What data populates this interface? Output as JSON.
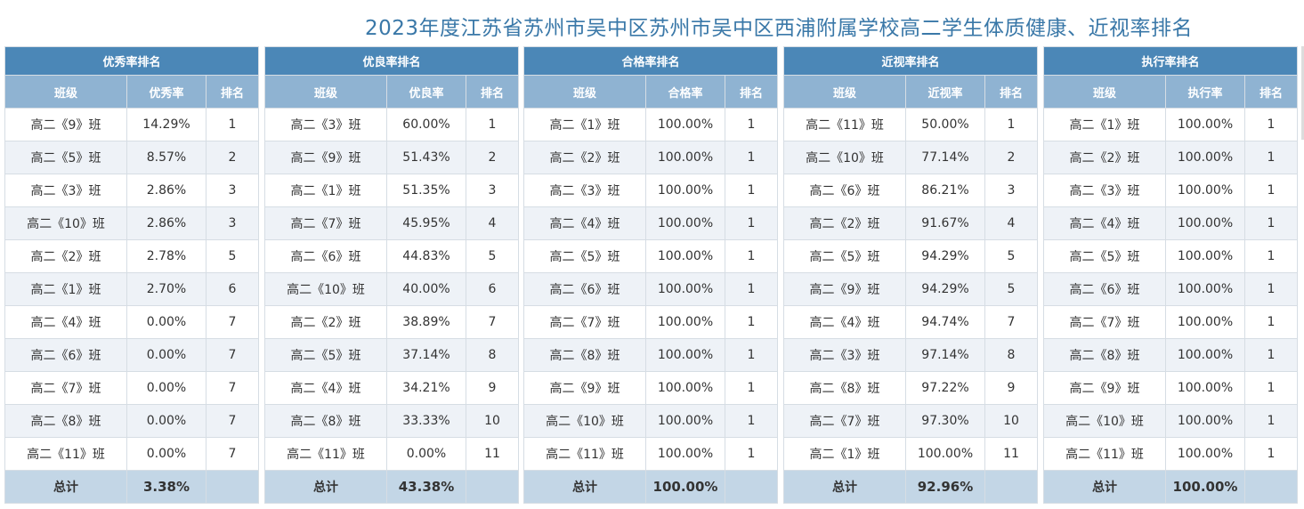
{
  "title": "2023年度江苏省苏州市吴中区苏州市吴中区西浦附属学校高二学生体质健康、近视率排名",
  "headers": {
    "class": "班级",
    "rank": "排名"
  },
  "total_label": "总计",
  "tables": [
    {
      "title": "优秀率排名",
      "rate_header": "优秀率",
      "rows": [
        {
          "cls": "高二《9》班",
          "rate": "14.29%",
          "rank": "1"
        },
        {
          "cls": "高二《5》班",
          "rate": "8.57%",
          "rank": "2"
        },
        {
          "cls": "高二《3》班",
          "rate": "2.86%",
          "rank": "3"
        },
        {
          "cls": "高二《10》班",
          "rate": "2.86%",
          "rank": "3"
        },
        {
          "cls": "高二《2》班",
          "rate": "2.78%",
          "rank": "5"
        },
        {
          "cls": "高二《1》班",
          "rate": "2.70%",
          "rank": "6"
        },
        {
          "cls": "高二《4》班",
          "rate": "0.00%",
          "rank": "7"
        },
        {
          "cls": "高二《6》班",
          "rate": "0.00%",
          "rank": "7"
        },
        {
          "cls": "高二《7》班",
          "rate": "0.00%",
          "rank": "7"
        },
        {
          "cls": "高二《8》班",
          "rate": "0.00%",
          "rank": "7"
        },
        {
          "cls": "高二《11》班",
          "rate": "0.00%",
          "rank": "7"
        }
      ],
      "total": "3.38%"
    },
    {
      "title": "优良率排名",
      "rate_header": "优良率",
      "rows": [
        {
          "cls": "高二《3》班",
          "rate": "60.00%",
          "rank": "1"
        },
        {
          "cls": "高二《9》班",
          "rate": "51.43%",
          "rank": "2"
        },
        {
          "cls": "高二《1》班",
          "rate": "51.35%",
          "rank": "3"
        },
        {
          "cls": "高二《7》班",
          "rate": "45.95%",
          "rank": "4"
        },
        {
          "cls": "高二《6》班",
          "rate": "44.83%",
          "rank": "5"
        },
        {
          "cls": "高二《10》班",
          "rate": "40.00%",
          "rank": "6"
        },
        {
          "cls": "高二《2》班",
          "rate": "38.89%",
          "rank": "7"
        },
        {
          "cls": "高二《5》班",
          "rate": "37.14%",
          "rank": "8"
        },
        {
          "cls": "高二《4》班",
          "rate": "34.21%",
          "rank": "9"
        },
        {
          "cls": "高二《8》班",
          "rate": "33.33%",
          "rank": "10"
        },
        {
          "cls": "高二《11》班",
          "rate": "0.00%",
          "rank": "11"
        }
      ],
      "total": "43.38%"
    },
    {
      "title": "合格率排名",
      "rate_header": "合格率",
      "rows": [
        {
          "cls": "高二《1》班",
          "rate": "100.00%",
          "rank": "1"
        },
        {
          "cls": "高二《2》班",
          "rate": "100.00%",
          "rank": "1"
        },
        {
          "cls": "高二《3》班",
          "rate": "100.00%",
          "rank": "1"
        },
        {
          "cls": "高二《4》班",
          "rate": "100.00%",
          "rank": "1"
        },
        {
          "cls": "高二《5》班",
          "rate": "100.00%",
          "rank": "1"
        },
        {
          "cls": "高二《6》班",
          "rate": "100.00%",
          "rank": "1"
        },
        {
          "cls": "高二《7》班",
          "rate": "100.00%",
          "rank": "1"
        },
        {
          "cls": "高二《8》班",
          "rate": "100.00%",
          "rank": "1"
        },
        {
          "cls": "高二《9》班",
          "rate": "100.00%",
          "rank": "1"
        },
        {
          "cls": "高二《10》班",
          "rate": "100.00%",
          "rank": "1"
        },
        {
          "cls": "高二《11》班",
          "rate": "100.00%",
          "rank": "1"
        }
      ],
      "total": "100.00%"
    },
    {
      "title": "近视率排名",
      "rate_header": "近视率",
      "rows": [
        {
          "cls": "高二《11》班",
          "rate": "50.00%",
          "rank": "1"
        },
        {
          "cls": "高二《10》班",
          "rate": "77.14%",
          "rank": "2"
        },
        {
          "cls": "高二《6》班",
          "rate": "86.21%",
          "rank": "3"
        },
        {
          "cls": "高二《2》班",
          "rate": "91.67%",
          "rank": "4"
        },
        {
          "cls": "高二《5》班",
          "rate": "94.29%",
          "rank": "5"
        },
        {
          "cls": "高二《9》班",
          "rate": "94.29%",
          "rank": "5"
        },
        {
          "cls": "高二《4》班",
          "rate": "94.74%",
          "rank": "7"
        },
        {
          "cls": "高二《3》班",
          "rate": "97.14%",
          "rank": "8"
        },
        {
          "cls": "高二《8》班",
          "rate": "97.22%",
          "rank": "9"
        },
        {
          "cls": "高二《7》班",
          "rate": "97.30%",
          "rank": "10"
        },
        {
          "cls": "高二《1》班",
          "rate": "100.00%",
          "rank": "11"
        }
      ],
      "total": "92.96%"
    },
    {
      "title": "执行率排名",
      "rate_header": "执行率",
      "rows": [
        {
          "cls": "高二《1》班",
          "rate": "100.00%",
          "rank": "1"
        },
        {
          "cls": "高二《2》班",
          "rate": "100.00%",
          "rank": "1"
        },
        {
          "cls": "高二《3》班",
          "rate": "100.00%",
          "rank": "1"
        },
        {
          "cls": "高二《4》班",
          "rate": "100.00%",
          "rank": "1"
        },
        {
          "cls": "高二《5》班",
          "rate": "100.00%",
          "rank": "1"
        },
        {
          "cls": "高二《6》班",
          "rate": "100.00%",
          "rank": "1"
        },
        {
          "cls": "高二《7》班",
          "rate": "100.00%",
          "rank": "1"
        },
        {
          "cls": "高二《8》班",
          "rate": "100.00%",
          "rank": "1"
        },
        {
          "cls": "高二《9》班",
          "rate": "100.00%",
          "rank": "1"
        },
        {
          "cls": "高二《10》班",
          "rate": "100.00%",
          "rank": "1"
        },
        {
          "cls": "高二《11》班",
          "rate": "100.00%",
          "rank": "1"
        }
      ],
      "total": "100.00%"
    }
  ]
}
